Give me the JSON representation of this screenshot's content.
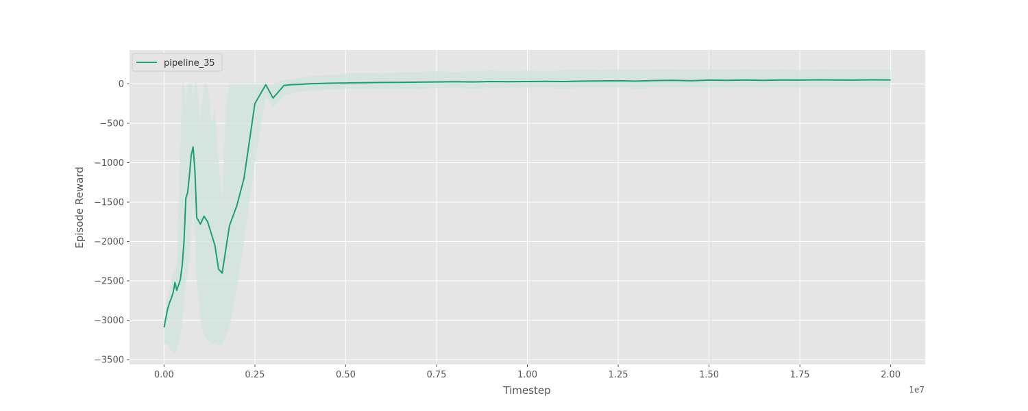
{
  "chart_data": {
    "type": "line",
    "xlabel": "Timestep",
    "ylabel": "Episode Reward",
    "x_offset_label": "1e7",
    "xlim": [
      -0.095,
      2.095
    ],
    "ylim": [
      -3560,
      430
    ],
    "x_ticks": [
      0.0,
      0.25,
      0.5,
      0.75,
      1.0,
      1.25,
      1.5,
      1.75,
      2.0
    ],
    "x_tick_labels": [
      "0.00",
      "0.25",
      "0.50",
      "0.75",
      "1.00",
      "1.25",
      "1.50",
      "1.75",
      "2.00"
    ],
    "y_ticks": [
      -3500,
      -3000,
      -2500,
      -2000,
      -1500,
      -1000,
      -500,
      0
    ],
    "y_tick_labels": [
      "−3500",
      "−3000",
      "−2500",
      "−2000",
      "−1500",
      "−1000",
      "−500",
      "0"
    ],
    "grid": true,
    "legend_position": "top-left",
    "colors": {
      "series": "#1b9e77",
      "band": "#cfe3dc",
      "axes_bg": "#e5e5e5",
      "grid": "#ffffff"
    },
    "series": [
      {
        "name": "pipeline_35",
        "x": [
          0.0,
          0.01,
          0.015,
          0.02,
          0.025,
          0.03,
          0.035,
          0.04,
          0.045,
          0.05,
          0.055,
          0.06,
          0.065,
          0.07,
          0.075,
          0.08,
          0.085,
          0.09,
          0.1,
          0.11,
          0.12,
          0.13,
          0.14,
          0.15,
          0.16,
          0.17,
          0.18,
          0.2,
          0.22,
          0.25,
          0.28,
          0.3,
          0.33,
          0.35,
          0.38,
          0.4,
          0.43,
          0.45,
          0.48,
          0.5,
          0.55,
          0.6,
          0.65,
          0.7,
          0.75,
          0.8,
          0.85,
          0.9,
          0.95,
          1.0,
          1.05,
          1.1,
          1.15,
          1.2,
          1.25,
          1.3,
          1.35,
          1.4,
          1.45,
          1.5,
          1.55,
          1.6,
          1.65,
          1.7,
          1.75,
          1.8,
          1.85,
          1.9,
          1.95,
          2.0
        ],
        "y": [
          -3090,
          -2850,
          -2780,
          -2720,
          -2650,
          -2520,
          -2620,
          -2550,
          -2480,
          -2300,
          -2000,
          -1450,
          -1380,
          -1150,
          -900,
          -800,
          -1100,
          -1700,
          -1780,
          -1680,
          -1750,
          -1900,
          -2050,
          -2350,
          -2400,
          -2100,
          -1800,
          -1550,
          -1200,
          -250,
          -10,
          -180,
          -20,
          -10,
          -5,
          2,
          5,
          8,
          10,
          12,
          15,
          18,
          20,
          22,
          25,
          28,
          25,
          30,
          28,
          30,
          32,
          30,
          35,
          38,
          40,
          35,
          42,
          45,
          40,
          48,
          45,
          50,
          45,
          50,
          48,
          52,
          50,
          48,
          52,
          50
        ],
        "band_upper": [
          -3000,
          -2700,
          -2600,
          -2500,
          -2400,
          -2350,
          -2300,
          -1500,
          -800,
          0,
          0,
          -300,
          0,
          0,
          0,
          -200,
          0,
          0,
          -500,
          0,
          0,
          -500,
          -300,
          -1000,
          -1500,
          -300,
          0,
          0,
          0,
          0,
          0,
          0,
          50,
          60,
          80,
          100,
          100,
          120,
          110,
          130,
          140,
          130,
          150,
          150,
          160,
          150,
          160,
          170,
          160,
          170,
          160,
          170,
          180,
          170,
          180,
          170,
          180,
          180,
          170,
          180,
          175,
          180,
          175,
          180,
          175,
          180,
          178,
          175,
          178,
          175
        ],
        "band_lower": [
          -3300,
          -3300,
          -3350,
          -3380,
          -3400,
          -3420,
          -3380,
          -3300,
          -3200,
          -3000,
          -2800,
          -2500,
          -2400,
          -2200,
          -1800,
          -1500,
          -1900,
          -2500,
          -3000,
          -3200,
          -3250,
          -3300,
          -3300,
          -3320,
          -3300,
          -3200,
          -3100,
          -2600,
          -2000,
          -1000,
          -150,
          -300,
          -150,
          -120,
          -100,
          -90,
          -80,
          -70,
          -70,
          -60,
          -60,
          -60,
          -60,
          -60,
          -50,
          -50,
          -60,
          -50,
          -50,
          -50,
          -50,
          -60,
          -50,
          -50,
          -40,
          -60,
          -50,
          -40,
          -50,
          -40,
          -50,
          -40,
          -50,
          -40,
          -50,
          -40,
          -50,
          -50,
          -40,
          -50
        ]
      }
    ]
  }
}
